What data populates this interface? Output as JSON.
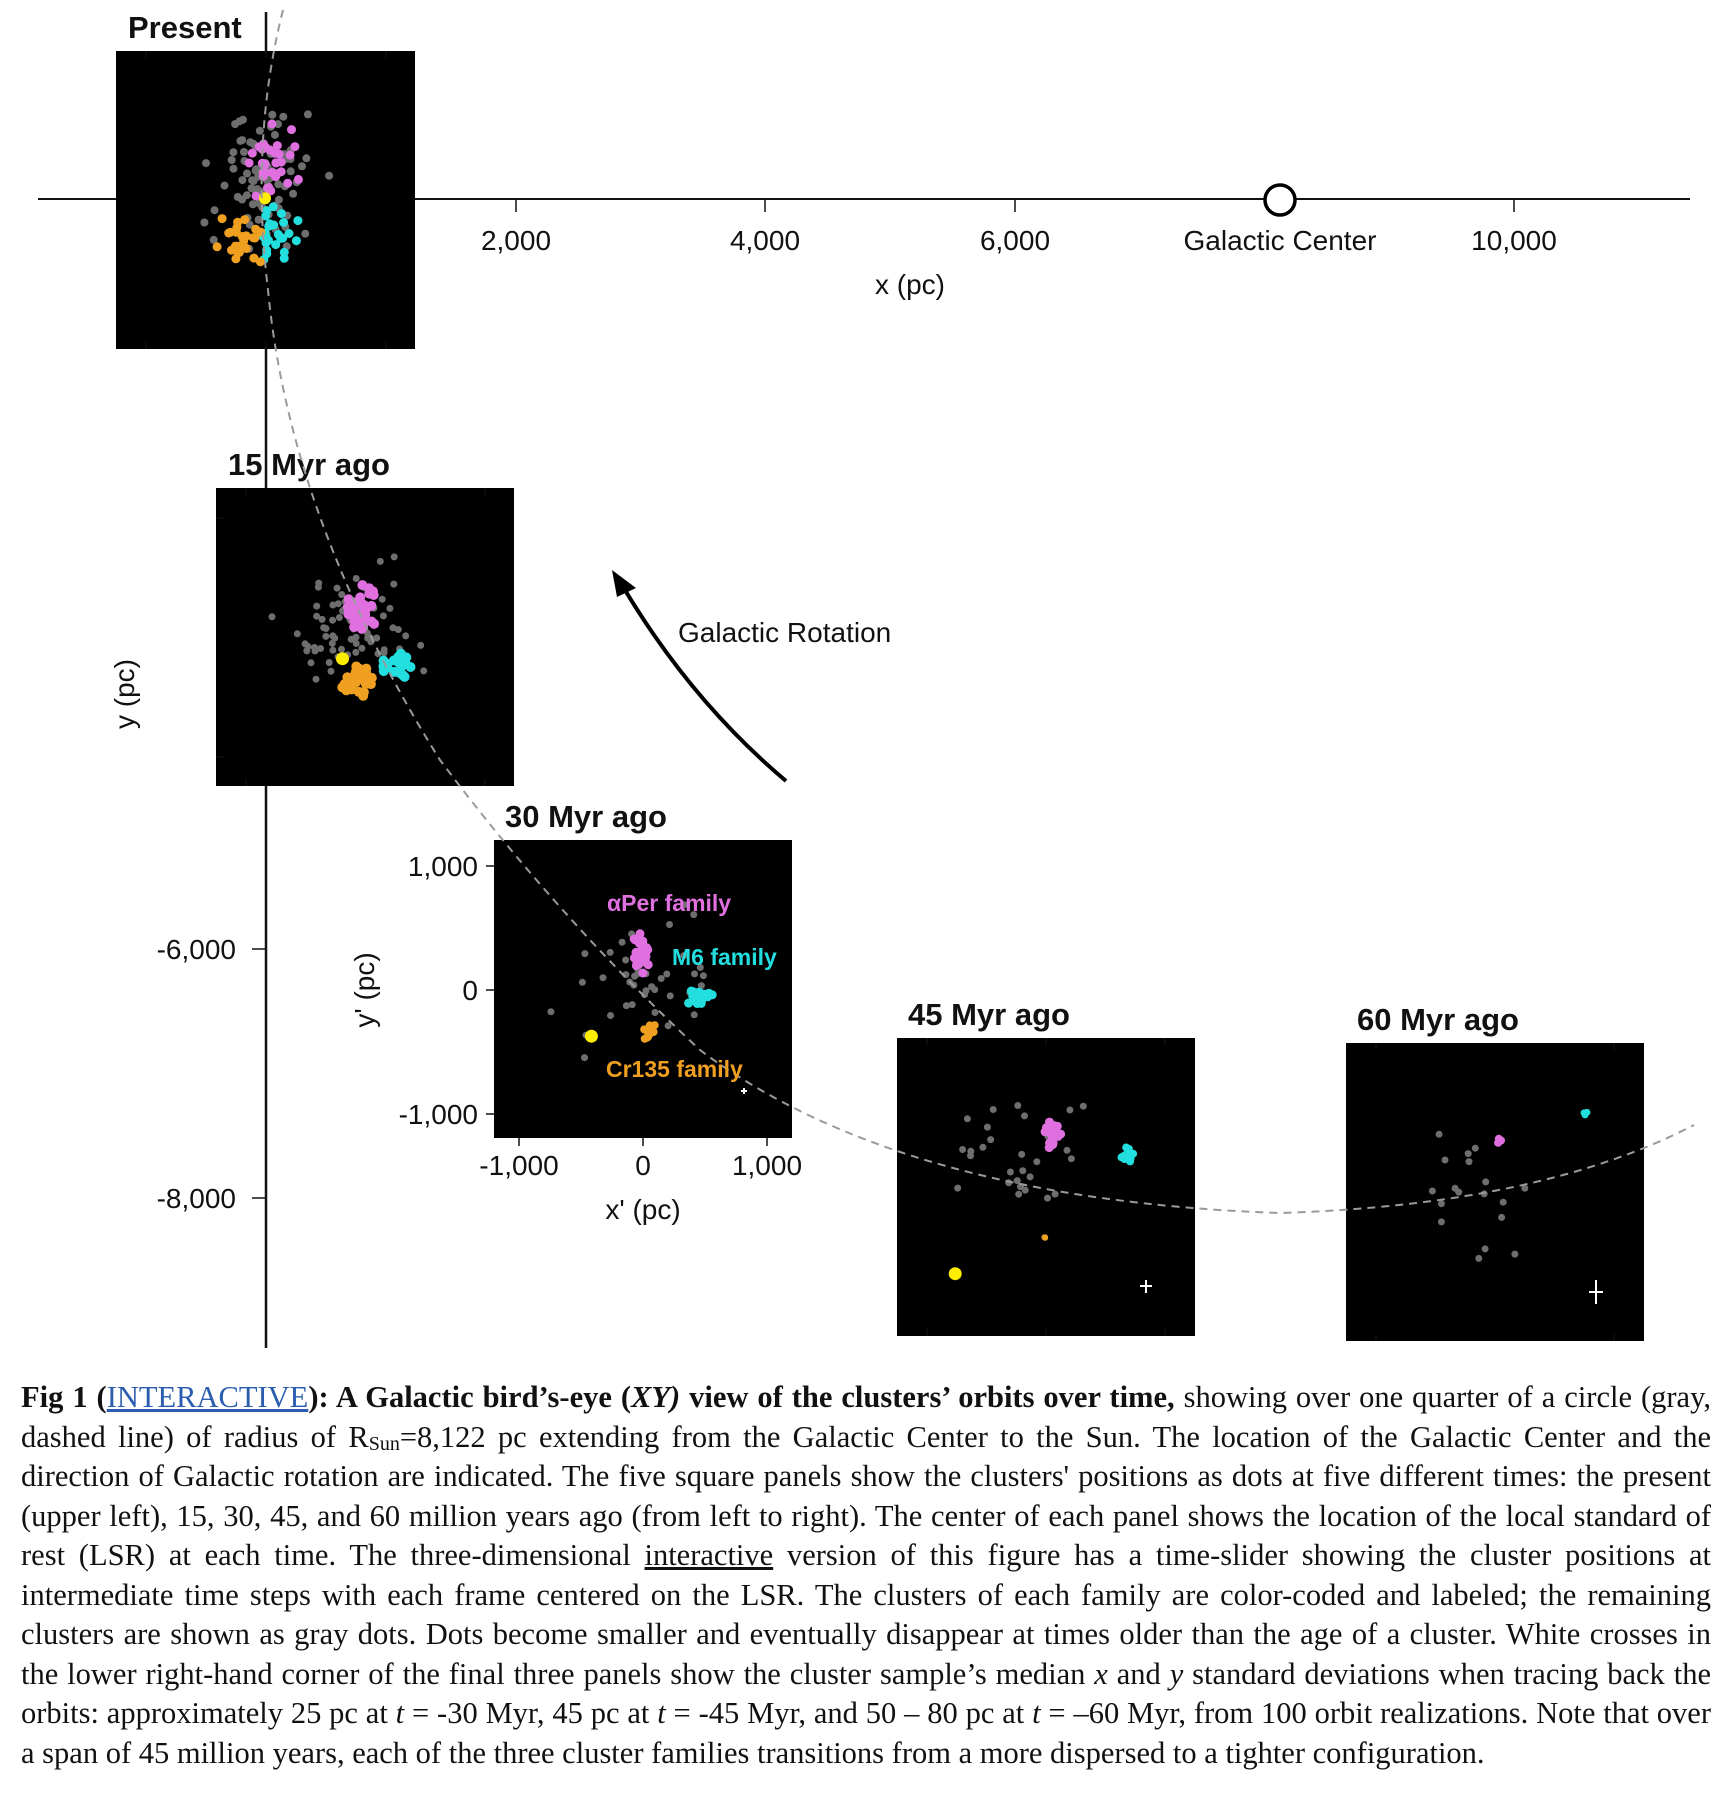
{
  "figure": {
    "x_axis": {
      "label": "x (pc)",
      "ticks": [
        "2,000",
        "4,000",
        "6,000",
        "10,000"
      ],
      "galactic_center_label": "Galactic Center"
    },
    "y_axis": {
      "label": "y (pc)",
      "ticks": [
        "-6,000",
        "-8,000"
      ]
    },
    "rotation_label": "Galactic Rotation",
    "panels": [
      {
        "title": "Present"
      },
      {
        "title": "15 Myr ago"
      },
      {
        "title": "30 Myr ago"
      },
      {
        "title": "45 Myr ago"
      },
      {
        "title": "60 Myr ago"
      }
    ],
    "inset_axes": {
      "xlabel": "x' (pc)",
      "ylabel": "y' (pc)",
      "xticks": [
        "-1,000",
        "0",
        "1,000"
      ],
      "yticks": [
        "1,000",
        "0",
        "-1,000"
      ]
    },
    "families": [
      {
        "name": "αPer family",
        "color": "#e070e0"
      },
      {
        "name": "M6 family",
        "color": "#22dede"
      },
      {
        "name": "Cr135 family",
        "color": "#f0a020"
      }
    ],
    "colors": {
      "background": "#000000",
      "field_clusters": "#6e6e6e",
      "sun": "#ffee00",
      "error_cross": "#ffffff"
    }
  },
  "caption": {
    "fig_label": "Fig 1 (",
    "link_text": "INTERACTIVE",
    "bold_a": "): A Galactic bird’s-eye (",
    "bold_xy": "XY)",
    "bold_b": " view of the clusters’ orbits over time,",
    "t1": " showing over one quarter of a circle (gray, dashed line) of radius of R",
    "sub": "Sun",
    "t2": "=8,122 pc extending from the Galactic Center to the Sun. The location of the Galactic Center and the direction of Galactic rotation are indicated. The five square panels show the clusters' positions as dots at five different times: the present (upper left), 15, 30, 45, and 60 million years ago (from left to right). The center of each panel shows the location of the local standard of rest (LSR) at each time. The three-dimensional ",
    "underline": "interactive",
    "t3": " version of this figure has a time-slider showing the cluster positions at intermediate time steps with each frame centered on the LSR. The clusters of each family are color-coded and labeled; the remaining clusters are shown as gray dots. Dots become smaller and eventually disappear at times older than the age of a cluster. White crosses in the lower right-hand corner of the final three panels show the cluster sample’s median ",
    "x": "x",
    "t4": " and ",
    "y": "y",
    "t5": " standard deviations when tracing back the orbits: approximately 25 pc at ",
    "ta": "t",
    "t6": " = -30 Myr, 45 pc at ",
    "tb": "t",
    "t7": " = -45 Myr, and 50 – 80 pc at ",
    "tc": "t",
    "t8": " = –60 Myr, from 100 orbit realizations. Note that over a span of 45 million years, each of the three cluster families transitions from a more dispersed to a tighter configuration."
  }
}
